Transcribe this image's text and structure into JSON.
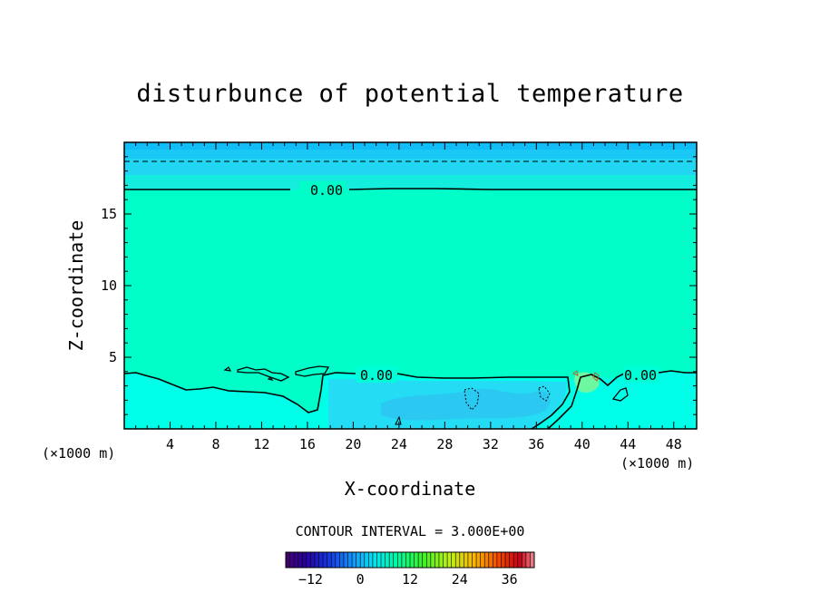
{
  "chart_data": {
    "type": "heatmap",
    "title": "disturbunce of potential temperature",
    "xlabel": "X-coordinate",
    "ylabel": "Z-coordinate",
    "x_unit": "(×1000 m)",
    "z_unit": "(×1000 m)",
    "xlim": [
      0,
      50
    ],
    "ylim": [
      0,
      20
    ],
    "x_ticks": [
      4,
      8,
      12,
      16,
      20,
      24,
      28,
      32,
      36,
      40,
      44,
      48
    ],
    "y_ticks": [
      5,
      10,
      15
    ],
    "contour_labels": [
      "0.00",
      "0.00",
      "0.00"
    ],
    "contour_interval_text": "CONTOUR INTERVAL = 3.000E+00",
    "colorbar": {
      "min": -18,
      "max": 42,
      "ticks": [
        -12,
        0,
        12,
        24,
        36
      ]
    },
    "regions": [
      {
        "name": "upper layer",
        "z_range": [
          17,
          20
        ],
        "color": "#19b6f4"
      },
      {
        "name": "middle",
        "z_range": [
          4,
          17
        ],
        "color": "#00ffc8"
      },
      {
        "name": "lower",
        "z_range": [
          0,
          4
        ],
        "color": "#00ffe6"
      },
      {
        "name": "lower cold pool",
        "x_range": [
          18,
          39
        ],
        "z_range": [
          0,
          3.6
        ],
        "color": "#1ee0f4"
      }
    ]
  }
}
